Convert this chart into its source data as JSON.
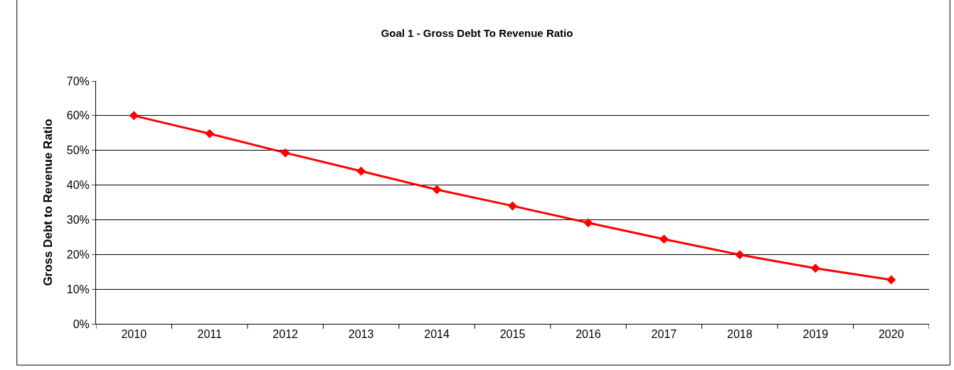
{
  "chart_data": {
    "type": "line",
    "title": "Goal 1 - Gross Debt To Revenue Ratio",
    "ylabel": "Gross Debt to Revenue Ratio",
    "categories": [
      "2010",
      "2011",
      "2012",
      "2013",
      "2014",
      "2015",
      "2016",
      "2017",
      "2018",
      "2019",
      "2020"
    ],
    "series": [
      {
        "color": "#ff0000",
        "values": [
          60,
          54.8,
          49.3,
          44,
          38.7,
          34,
          29.1,
          24.4,
          19.9,
          16,
          12.7
        ]
      }
    ],
    "ylim": [
      0,
      70
    ],
    "yticks": [
      {
        "value": 0,
        "label": "0%"
      },
      {
        "value": 10,
        "label": "10%"
      },
      {
        "value": 20,
        "label": "20%"
      },
      {
        "value": 30,
        "label": "30%"
      },
      {
        "value": 40,
        "label": "40%"
      },
      {
        "value": 50,
        "label": "50%"
      },
      {
        "value": 60,
        "label": "60%"
      },
      {
        "value": 70,
        "label": "70%"
      }
    ],
    "grid": "y",
    "legend": false,
    "marker": "diamond",
    "line_style": "solid"
  }
}
